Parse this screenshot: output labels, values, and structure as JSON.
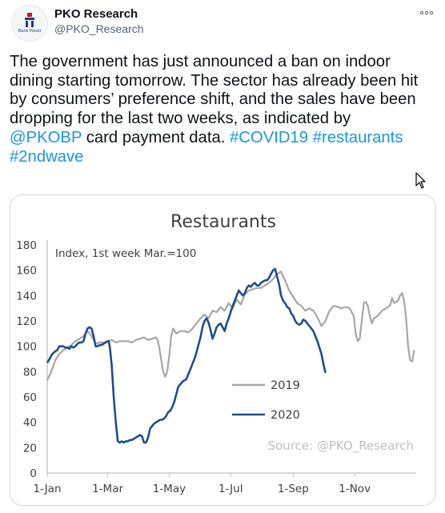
{
  "tweet": {
    "display_name": "PKO Research",
    "handle": "@PKO_Research",
    "avatar_caption": "Bank Polski",
    "more_icon": "more-dots-icon",
    "text_parts": [
      {
        "t": "The government has just announced a ban on indoor dining starting tomorrow. The sector has already been hit by consumers’ preference shift, and the sales have been dropping for the last two weeks, as indicated by ",
        "link": false
      },
      {
        "t": "@PKOBP",
        "link": true
      },
      {
        "t": " card payment data.  ",
        "link": false
      },
      {
        "t": "#COVID19",
        "link": true
      },
      {
        "t": " ",
        "link": false
      },
      {
        "t": "#restaurants",
        "link": true
      },
      {
        "t": " ",
        "link": false
      },
      {
        "t": "#2ndwave",
        "link": true
      }
    ],
    "link_color": "#1b95e0"
  },
  "chart_data": {
    "type": "line",
    "title": "Restaurants",
    "annotation": "Index, 1st week Mar.=100",
    "source": "Source: @PKO_Research",
    "xlabel": "",
    "ylabel": "",
    "ylim": [
      0,
      180
    ],
    "yticks": [
      0,
      20,
      40,
      60,
      80,
      100,
      120,
      140,
      160,
      180
    ],
    "xlim": [
      0,
      366
    ],
    "xticks": [
      {
        "label": "1-Jan",
        "day": 0
      },
      {
        "label": "1-Mar",
        "day": 60
      },
      {
        "label": "1-May",
        "day": 121
      },
      {
        "label": "1-Jul",
        "day": 182
      },
      {
        "label": "1-Sep",
        "day": 244
      },
      {
        "label": "1-Nov",
        "day": 305
      }
    ],
    "legend_position": "center-right",
    "series": [
      {
        "name": "2019",
        "color": "#a6a6a6",
        "points": [
          [
            0,
            73
          ],
          [
            4,
            80
          ],
          [
            8,
            89
          ],
          [
            12,
            94
          ],
          [
            16,
            97
          ],
          [
            20,
            99
          ],
          [
            24,
            101
          ],
          [
            28,
            104
          ],
          [
            32,
            106
          ],
          [
            36,
            108
          ],
          [
            40,
            112
          ],
          [
            44,
            108
          ],
          [
            48,
            102
          ],
          [
            52,
            103
          ],
          [
            56,
            103
          ],
          [
            60,
            104
          ],
          [
            64,
            105
          ],
          [
            68,
            103
          ],
          [
            72,
            104
          ],
          [
            76,
            104
          ],
          [
            80,
            104
          ],
          [
            84,
            103
          ],
          [
            88,
            105
          ],
          [
            92,
            106
          ],
          [
            96,
            107
          ],
          [
            100,
            105
          ],
          [
            104,
            106
          ],
          [
            108,
            107
          ],
          [
            110,
            104
          ],
          [
            113,
            90
          ],
          [
            115,
            80
          ],
          [
            117,
            76
          ],
          [
            119,
            80
          ],
          [
            121,
            92
          ],
          [
            123,
            108
          ],
          [
            125,
            114
          ],
          [
            128,
            110
          ],
          [
            132,
            112
          ],
          [
            136,
            112
          ],
          [
            140,
            111
          ],
          [
            144,
            114
          ],
          [
            148,
            118
          ],
          [
            152,
            122
          ],
          [
            156,
            125
          ],
          [
            160,
            122
          ],
          [
            164,
            128
          ],
          [
            168,
            127
          ],
          [
            172,
            131
          ],
          [
            176,
            128
          ],
          [
            180,
            134
          ],
          [
            184,
            130
          ],
          [
            188,
            137
          ],
          [
            192,
            133
          ],
          [
            196,
            141
          ],
          [
            200,
            144
          ],
          [
            204,
            145
          ],
          [
            208,
            146
          ],
          [
            212,
            146
          ],
          [
            216,
            148
          ],
          [
            220,
            150
          ],
          [
            224,
            153
          ],
          [
            228,
            157
          ],
          [
            232,
            159
          ],
          [
            234,
            155
          ],
          [
            236,
            152
          ],
          [
            240,
            144
          ],
          [
            244,
            139
          ],
          [
            248,
            134
          ],
          [
            252,
            132
          ],
          [
            256,
            128
          ],
          [
            260,
            130
          ],
          [
            264,
            128
          ],
          [
            268,
            123
          ],
          [
            272,
            116
          ],
          [
            276,
            120
          ],
          [
            280,
            128
          ],
          [
            284,
            132
          ],
          [
            288,
            131
          ],
          [
            292,
            130
          ],
          [
            296,
            131
          ],
          [
            300,
            130
          ],
          [
            304,
            124
          ],
          [
            306,
            110
          ],
          [
            308,
            104
          ],
          [
            310,
            106
          ],
          [
            312,
            120
          ],
          [
            314,
            134
          ],
          [
            316,
            135
          ],
          [
            318,
            132
          ],
          [
            320,
            124
          ],
          [
            322,
            118
          ],
          [
            324,
            122
          ],
          [
            328,
            124
          ],
          [
            332,
            128
          ],
          [
            336,
            130
          ],
          [
            340,
            132
          ],
          [
            342,
            138
          ],
          [
            344,
            134
          ],
          [
            348,
            136
          ],
          [
            350,
            140
          ],
          [
            352,
            142
          ],
          [
            354,
            136
          ],
          [
            356,
            122
          ],
          [
            358,
            100
          ],
          [
            360,
            89
          ],
          [
            362,
            88
          ],
          [
            364,
            97
          ]
        ]
      },
      {
        "name": "2020",
        "color": "#1f4e8c",
        "points": [
          [
            0,
            87
          ],
          [
            3,
            91
          ],
          [
            5,
            94
          ],
          [
            8,
            96
          ],
          [
            10,
            97
          ],
          [
            12,
            100
          ],
          [
            14,
            100
          ],
          [
            16,
            100
          ],
          [
            18,
            99
          ],
          [
            20,
            99
          ],
          [
            22,
            98
          ],
          [
            24,
            100
          ],
          [
            26,
            99
          ],
          [
            28,
            100
          ],
          [
            30,
            102
          ],
          [
            32,
            103
          ],
          [
            34,
            103
          ],
          [
            36,
            104
          ],
          [
            38,
            110
          ],
          [
            40,
            114
          ],
          [
            42,
            115
          ],
          [
            44,
            114
          ],
          [
            46,
            108
          ],
          [
            48,
            100
          ],
          [
            50,
            100
          ],
          [
            52,
            101
          ],
          [
            54,
            101
          ],
          [
            56,
            102
          ],
          [
            58,
            103
          ],
          [
            60,
            104
          ],
          [
            61,
            104
          ],
          [
            62,
            100
          ],
          [
            64,
            85
          ],
          [
            66,
            60
          ],
          [
            68,
            40
          ],
          [
            70,
            25
          ],
          [
            72,
            24
          ],
          [
            74,
            25
          ],
          [
            76,
            24
          ],
          [
            78,
            25
          ],
          [
            80,
            25
          ],
          [
            82,
            26
          ],
          [
            84,
            26
          ],
          [
            86,
            27
          ],
          [
            88,
            28
          ],
          [
            90,
            29
          ],
          [
            92,
            30
          ],
          [
            94,
            29
          ],
          [
            96,
            24
          ],
          [
            98,
            24
          ],
          [
            100,
            28
          ],
          [
            102,
            35
          ],
          [
            104,
            37
          ],
          [
            106,
            39
          ],
          [
            108,
            40
          ],
          [
            110,
            41
          ],
          [
            112,
            42
          ],
          [
            114,
            42
          ],
          [
            116,
            43
          ],
          [
            118,
            45
          ],
          [
            120,
            48
          ],
          [
            122,
            49
          ],
          [
            124,
            52
          ],
          [
            126,
            56
          ],
          [
            128,
            62
          ],
          [
            130,
            68
          ],
          [
            132,
            70
          ],
          [
            134,
            72
          ],
          [
            136,
            73
          ],
          [
            138,
            74
          ],
          [
            140,
            78
          ],
          [
            142,
            82
          ],
          [
            144,
            86
          ],
          [
            146,
            90
          ],
          [
            148,
            95
          ],
          [
            150,
            101
          ],
          [
            152,
            107
          ],
          [
            154,
            115
          ],
          [
            156,
            120
          ],
          [
            158,
            122
          ],
          [
            160,
            119
          ],
          [
            162,
            113
          ],
          [
            164,
            106
          ],
          [
            166,
            110
          ],
          [
            168,
            115
          ],
          [
            170,
            117
          ],
          [
            172,
            118
          ],
          [
            174,
            115
          ],
          [
            176,
            112
          ],
          [
            178,
            118
          ],
          [
            180,
            122
          ],
          [
            182,
            127
          ],
          [
            184,
            132
          ],
          [
            186,
            136
          ],
          [
            188,
            140
          ],
          [
            190,
            144
          ],
          [
            192,
            142
          ],
          [
            194,
            140
          ],
          [
            196,
            142
          ],
          [
            198,
            146
          ],
          [
            200,
            148
          ],
          [
            202,
            147
          ],
          [
            204,
            149
          ],
          [
            206,
            150
          ],
          [
            208,
            148
          ],
          [
            210,
            148
          ],
          [
            212,
            150
          ],
          [
            214,
            151
          ],
          [
            216,
            152
          ],
          [
            218,
            152
          ],
          [
            220,
            154
          ],
          [
            222,
            157
          ],
          [
            224,
            160
          ],
          [
            226,
            161
          ],
          [
            228,
            155
          ],
          [
            230,
            149
          ],
          [
            232,
            140
          ],
          [
            234,
            136
          ],
          [
            236,
            134
          ],
          [
            238,
            131
          ],
          [
            240,
            130
          ],
          [
            242,
            126
          ],
          [
            244,
            124
          ],
          [
            246,
            120
          ],
          [
            248,
            118
          ],
          [
            250,
            117
          ],
          [
            252,
            118
          ],
          [
            254,
            121
          ],
          [
            256,
            120
          ],
          [
            258,
            118
          ],
          [
            260,
            116
          ],
          [
            262,
            114
          ],
          [
            264,
            112
          ],
          [
            266,
            108
          ],
          [
            268,
            104
          ],
          [
            270,
            99
          ],
          [
            272,
            94
          ],
          [
            274,
            86
          ],
          [
            276,
            79
          ]
        ]
      }
    ]
  }
}
